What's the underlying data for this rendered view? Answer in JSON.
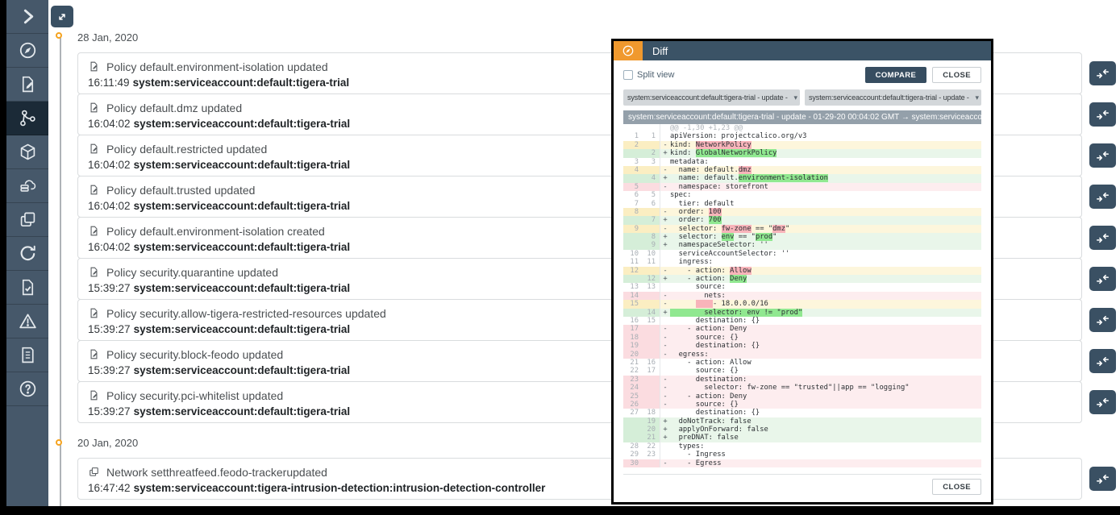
{
  "sidebar": {
    "items": [
      {
        "name": "collapse",
        "icon": "chevron-right-icon",
        "active": false
      },
      {
        "name": "dashboard",
        "icon": "compass-icon",
        "active": false
      },
      {
        "name": "policies",
        "icon": "document-edit-icon",
        "active": false
      },
      {
        "name": "flow-visualization",
        "icon": "network-graph-icon",
        "active": true
      },
      {
        "name": "workloads",
        "icon": "cube-icon",
        "active": false
      },
      {
        "name": "storage",
        "icon": "cloud-database-icon",
        "active": false
      },
      {
        "name": "tiers",
        "icon": "layers-icon",
        "active": false
      },
      {
        "name": "compliance",
        "icon": "refresh-icon",
        "active": false
      },
      {
        "name": "reports",
        "icon": "document-check-icon",
        "active": false
      },
      {
        "name": "alerts",
        "icon": "warning-triangle-icon",
        "active": false
      },
      {
        "name": "logs",
        "icon": "document-list-icon",
        "active": false
      },
      {
        "name": "help",
        "icon": "help-circle-icon",
        "active": false
      }
    ]
  },
  "timeline": {
    "groups": [
      {
        "date": "28 Jan, 2020",
        "events": [
          {
            "icon": "policy",
            "title": "Policy default.environment-isolation updated",
            "time": "16:11:49",
            "account": "system:serviceaccount:default:tigera-trial"
          },
          {
            "icon": "policy",
            "title": "Policy default.dmz updated",
            "time": "16:04:02",
            "account": "system:serviceaccount:default:tigera-trial"
          },
          {
            "icon": "policy",
            "title": "Policy default.restricted updated",
            "time": "16:04:02",
            "account": "system:serviceaccount:default:tigera-trial"
          },
          {
            "icon": "policy",
            "title": "Policy default.trusted updated",
            "time": "16:04:02",
            "account": "system:serviceaccount:default:tigera-trial"
          },
          {
            "icon": "policy",
            "title": "Policy default.environment-isolation created",
            "time": "16:04:02",
            "account": "system:serviceaccount:default:tigera-trial"
          },
          {
            "icon": "policy",
            "title": "Policy security.quarantine updated",
            "time": "15:39:27",
            "account": "system:serviceaccount:default:tigera-trial"
          },
          {
            "icon": "policy",
            "title": "Policy security.allow-tigera-restricted-resources updated",
            "time": "15:39:27",
            "account": "system:serviceaccount:default:tigera-trial"
          },
          {
            "icon": "policy",
            "title": "Policy security.block-feodo updated",
            "time": "15:39:27",
            "account": "system:serviceaccount:default:tigera-trial"
          },
          {
            "icon": "policy",
            "title": "Policy security.pci-whitelist updated",
            "time": "15:39:27",
            "account": "system:serviceaccount:default:tigera-trial"
          }
        ]
      },
      {
        "date": "20 Jan, 2020",
        "events": [
          {
            "icon": "network",
            "title": "Network setthreatfeed.feodo-trackerupdated",
            "time": "16:47:42",
            "account": "system:serviceaccount:tigera-intrusion-detection:intrusion-detection-controller"
          }
        ]
      }
    ]
  },
  "modal": {
    "title": "Diff",
    "split_view_label": "Split view",
    "compare_label": "COMPARE",
    "close_label": "CLOSE",
    "footer_close_label": "CLOSE",
    "left_select": "system:serviceaccount:default:tigera-trial - update -",
    "right_select": "system:serviceaccount:default:tigera-trial - update -",
    "caption": "system:serviceaccount:default:tigera-trial - update - 01-29-20 00:04:02 GMT → system:serviceaccoun...",
    "hunk": "@@ -1,30 +1,23 @@",
    "diff_lines": [
      {
        "o": "1",
        "n": "1",
        "m": "",
        "t": "ctx",
        "s": [
          {
            "x": "apiVersion: projectcalico.org/v3"
          }
        ]
      },
      {
        "o": "2",
        "n": "",
        "m": "-",
        "t": "chg-del",
        "s": [
          {
            "x": "kind: "
          },
          {
            "x": "NetworkPolicy",
            "h": true
          }
        ]
      },
      {
        "o": "",
        "n": "2",
        "m": "+",
        "t": "ins",
        "s": [
          {
            "x": "kind: "
          },
          {
            "x": "GlobalNetworkPolicy",
            "h": true
          }
        ]
      },
      {
        "o": "3",
        "n": "3",
        "m": "",
        "t": "ctx",
        "s": [
          {
            "x": "metadata:"
          }
        ]
      },
      {
        "o": "4",
        "n": "",
        "m": "-",
        "t": "chg-del",
        "s": [
          {
            "x": "  name: default."
          },
          {
            "x": "dmz",
            "h": true
          }
        ]
      },
      {
        "o": "",
        "n": "4",
        "m": "+",
        "t": "ins",
        "s": [
          {
            "x": "  name: default."
          },
          {
            "x": "environment-isolation",
            "h": true
          }
        ]
      },
      {
        "o": "5",
        "n": "",
        "m": "-",
        "t": "del",
        "s": [
          {
            "x": "  namespace: storefront"
          }
        ]
      },
      {
        "o": "6",
        "n": "5",
        "m": "",
        "t": "ctx",
        "s": [
          {
            "x": "spec:"
          }
        ]
      },
      {
        "o": "7",
        "n": "6",
        "m": "",
        "t": "ctx",
        "s": [
          {
            "x": "  tier: default"
          }
        ]
      },
      {
        "o": "8",
        "n": "",
        "m": "-",
        "t": "chg-del",
        "s": [
          {
            "x": "  order: "
          },
          {
            "x": "100",
            "h": true
          }
        ]
      },
      {
        "o": "",
        "n": "7",
        "m": "+",
        "t": "ins",
        "s": [
          {
            "x": "  order: "
          },
          {
            "x": "700",
            "h": true
          }
        ]
      },
      {
        "o": "9",
        "n": "",
        "m": "-",
        "t": "chg-del",
        "s": [
          {
            "x": "  selector: "
          },
          {
            "x": "fw-zone",
            "h": true
          },
          {
            "x": " == \""
          },
          {
            "x": "dmz",
            "h": true
          },
          {
            "x": "\""
          }
        ]
      },
      {
        "o": "",
        "n": "8",
        "m": "+",
        "t": "ins",
        "s": [
          {
            "x": "  selector: "
          },
          {
            "x": "env",
            "h": true
          },
          {
            "x": " == \""
          },
          {
            "x": "prod",
            "h": true
          },
          {
            "x": "\""
          }
        ]
      },
      {
        "o": "",
        "n": "9",
        "m": "+",
        "t": "ins",
        "s": [
          {
            "x": "  namespaceSelector: ''"
          }
        ]
      },
      {
        "o": "10",
        "n": "10",
        "m": "",
        "t": "ctx",
        "s": [
          {
            "x": "  serviceAccountSelector: ''"
          }
        ]
      },
      {
        "o": "11",
        "n": "11",
        "m": "",
        "t": "ctx",
        "s": [
          {
            "x": "  ingress:"
          }
        ]
      },
      {
        "o": "12",
        "n": "",
        "m": "-",
        "t": "chg-del",
        "s": [
          {
            "x": "    - action: "
          },
          {
            "x": "Allow",
            "h": true
          }
        ]
      },
      {
        "o": "",
        "n": "12",
        "m": "+",
        "t": "ins",
        "s": [
          {
            "x": "    - action: "
          },
          {
            "x": "Deny",
            "h": true
          }
        ]
      },
      {
        "o": "13",
        "n": "13",
        "m": "",
        "t": "ctx",
        "s": [
          {
            "x": "      source:"
          }
        ]
      },
      {
        "o": "14",
        "n": "",
        "m": "-",
        "t": "del",
        "s": [
          {
            "x": "        nets:"
          }
        ]
      },
      {
        "o": "15",
        "n": "",
        "m": "-",
        "t": "chg-del",
        "s": [
          {
            "x": "      "
          },
          {
            "x": "    ",
            "h": true
          },
          {
            "x": "- 18.0.0.0/16"
          }
        ]
      },
      {
        "o": "",
        "n": "14",
        "m": "+",
        "t": "ins",
        "s": [
          {
            "x": "        selector: env != \"prod\"",
            "h": true
          }
        ]
      },
      {
        "o": "16",
        "n": "15",
        "m": "",
        "t": "ctx",
        "s": [
          {
            "x": "      destination: {}"
          }
        ]
      },
      {
        "o": "17",
        "n": "",
        "m": "-",
        "t": "del",
        "s": [
          {
            "x": "    - action: Deny"
          }
        ]
      },
      {
        "o": "18",
        "n": "",
        "m": "-",
        "t": "del",
        "s": [
          {
            "x": "      source: {}"
          }
        ]
      },
      {
        "o": "19",
        "n": "",
        "m": "-",
        "t": "del",
        "s": [
          {
            "x": "      destination: {}"
          }
        ]
      },
      {
        "o": "20",
        "n": "",
        "m": "-",
        "t": "del",
        "s": [
          {
            "x": "  egress:"
          }
        ]
      },
      {
        "o": "21",
        "n": "16",
        "m": "",
        "t": "ctx",
        "s": [
          {
            "x": "    - action: Allow"
          }
        ]
      },
      {
        "o": "22",
        "n": "17",
        "m": "",
        "t": "ctx",
        "s": [
          {
            "x": "      source: {}"
          }
        ]
      },
      {
        "o": "23",
        "n": "",
        "m": "-",
        "t": "del",
        "s": [
          {
            "x": "      destination:"
          }
        ]
      },
      {
        "o": "24",
        "n": "",
        "m": "-",
        "t": "del",
        "s": [
          {
            "x": "        selector: fw-zone == \"trusted\"||app == \"logging\""
          }
        ]
      },
      {
        "o": "25",
        "n": "",
        "m": "-",
        "t": "del",
        "s": [
          {
            "x": "    - action: Deny"
          }
        ]
      },
      {
        "o": "26",
        "n": "",
        "m": "-",
        "t": "del",
        "s": [
          {
            "x": "      source: {}"
          }
        ]
      },
      {
        "o": "27",
        "n": "18",
        "m": "",
        "t": "ctx",
        "s": [
          {
            "x": "      destination: {}"
          }
        ]
      },
      {
        "o": "",
        "n": "19",
        "m": "+",
        "t": "ins",
        "s": [
          {
            "x": "  doNotTrack: false"
          }
        ]
      },
      {
        "o": "",
        "n": "20",
        "m": "+",
        "t": "ins",
        "s": [
          {
            "x": "  applyOnForward: false"
          }
        ]
      },
      {
        "o": "",
        "n": "21",
        "m": "+",
        "t": "ins",
        "s": [
          {
            "x": "  preDNAT: false"
          }
        ]
      },
      {
        "o": "28",
        "n": "22",
        "m": "",
        "t": "ctx",
        "s": [
          {
            "x": "  types:"
          }
        ]
      },
      {
        "o": "29",
        "n": "23",
        "m": "",
        "t": "ctx",
        "s": [
          {
            "x": "    - Ingress"
          }
        ]
      },
      {
        "o": "30",
        "n": "",
        "m": "-",
        "t": "del",
        "s": [
          {
            "x": "    - Egress"
          }
        ]
      }
    ]
  },
  "colors": {
    "sidebar_bg": "#46586a",
    "sidebar_active_bg": "#1b2a37",
    "accent_navy": "#3a5063",
    "accent_orange": "#f0992e",
    "timeline_dot": "#f5a31f",
    "diff_del_word": "#f8b4ba",
    "diff_ins_word": "#90e890",
    "diff_del_line": "#fdedef",
    "diff_chg_line": "#fdf6dc",
    "diff_ins_line": "#e9f6ea"
  }
}
